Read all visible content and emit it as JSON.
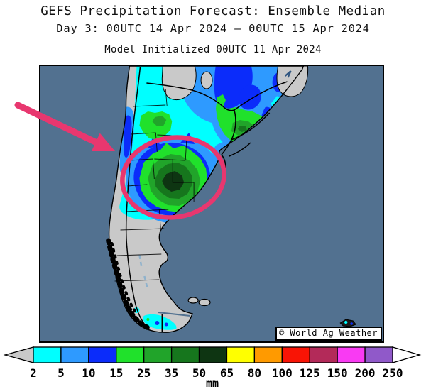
{
  "header": {
    "title": "GEFS Precipitation Forecast: Ensemble Median",
    "subtitle": "Day 3: 00UTC 14 Apr 2024 — 00UTC 15 Apr 2024",
    "init_line": "Model Initialized 00UTC 11 Apr 2024"
  },
  "map": {
    "watermark": "© World Ag Weather",
    "ocean_color": "#527190",
    "land_color": "#c9c9c9",
    "coast_color": "#000000",
    "glacier_color": "#8fb2cc",
    "annotation_color": "#e8376f"
  },
  "colorbar": {
    "unit": "mm",
    "tick_labels": [
      "2",
      "5",
      "10",
      "15",
      "25",
      "35",
      "50",
      "65",
      "80",
      "100",
      "125",
      "150",
      "200",
      "250"
    ],
    "box_colors": [
      "#00ffff",
      "#2e9aff",
      "#0b2cfa",
      "#20e12b",
      "#21a42a",
      "#16761d",
      "#0e3512",
      "#ffff00",
      "#ff9a00",
      "#f91405",
      "#b32a59",
      "#f93af3",
      "#9059c9"
    ],
    "under_arrow_color": "#c8c8c8",
    "over_arrow_color": "#ffffff"
  }
}
